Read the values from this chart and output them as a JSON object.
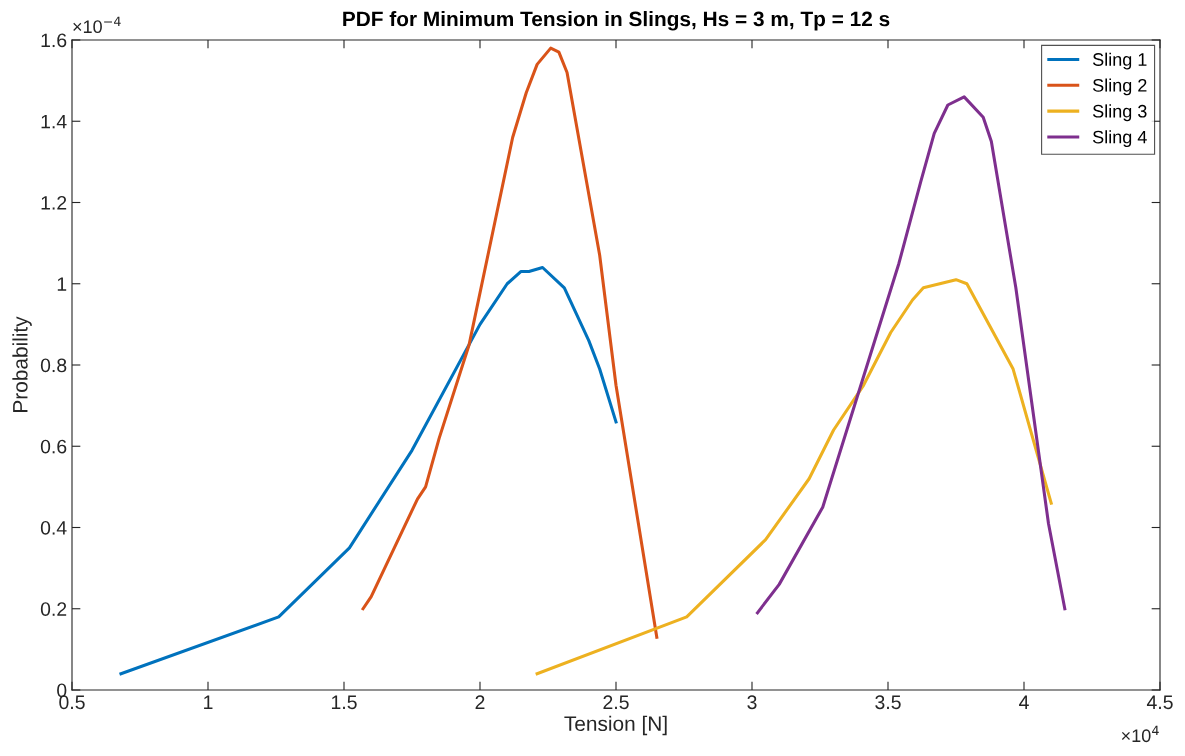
{
  "chart_data": {
    "type": "line",
    "title": "PDF for Minimum Tension in Slings, Hs = 3 m, Tp = 12 s",
    "xlabel": "Tension [N]",
    "ylabel": "Probability",
    "annotations": [
      "×10$^{4}$",
      "×10$^{−4}$"
    ],
    "xlim": [
      0.5,
      4.5
    ],
    "xticks": [
      0.5,
      1,
      1.5,
      2,
      2.5,
      3,
      3.5,
      4,
      4.5
    ],
    "ylim": [
      0,
      1.6
    ],
    "yticks": [
      0,
      0.2,
      0.4,
      0.6,
      0.8,
      1,
      1.2,
      1.4,
      1.6
    ],
    "grid": false,
    "legend": "top right",
    "marker": "none",
    "line_style": "solid",
    "series": [
      {
        "name": "Sling 1",
        "color": "#0072bd",
        "x": [
          0.68,
          1.26,
          1.52,
          1.75,
          2.0,
          2.1,
          2.15,
          2.18,
          2.23,
          2.31,
          2.4,
          2.44,
          2.5
        ],
        "values": [
          0.04,
          0.18,
          0.35,
          0.59,
          0.9,
          1.0,
          1.03,
          1.03,
          1.04,
          0.99,
          0.86,
          0.79,
          0.66
        ]
      },
      {
        "name": "Sling 2",
        "color": "#d95319",
        "x": [
          1.57,
          1.6,
          1.77,
          1.8,
          1.85,
          1.96,
          2.12,
          2.17,
          2.21,
          2.26,
          2.29,
          2.32,
          2.44,
          2.5,
          2.65
        ],
        "values": [
          0.2,
          0.23,
          0.47,
          0.5,
          0.62,
          0.85,
          1.36,
          1.47,
          1.54,
          1.58,
          1.57,
          1.52,
          1.07,
          0.75,
          0.13
        ]
      },
      {
        "name": "Sling 3",
        "color": "#edb120",
        "x": [
          2.21,
          2.76,
          3.05,
          3.21,
          3.3,
          3.41,
          3.51,
          3.59,
          3.63,
          3.75,
          3.79,
          3.96,
          4.1
        ],
        "values": [
          0.04,
          0.18,
          0.37,
          0.52,
          0.64,
          0.75,
          0.88,
          0.96,
          0.99,
          1.01,
          1.0,
          0.79,
          0.46
        ]
      },
      {
        "name": "Sling 4",
        "color": "#7e2f8e",
        "x": [
          3.02,
          3.1,
          3.26,
          3.54,
          3.62,
          3.67,
          3.72,
          3.78,
          3.85,
          3.88,
          3.97,
          4.09,
          4.15
        ],
        "values": [
          0.19,
          0.26,
          0.45,
          1.05,
          1.25,
          1.37,
          1.44,
          1.46,
          1.41,
          1.35,
          0.99,
          0.41,
          0.2
        ]
      }
    ]
  }
}
